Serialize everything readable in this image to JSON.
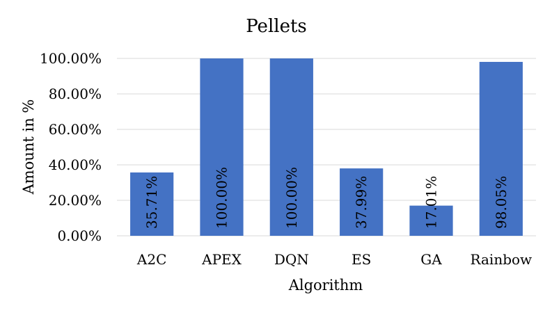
{
  "chart_data": {
    "type": "bar",
    "title": "Pellets",
    "xlabel": "Algorithm",
    "ylabel": "Amount in %",
    "categories": [
      "A2C",
      "APEX",
      "DQN",
      "ES",
      "GA",
      "Rainbow"
    ],
    "values": [
      35.71,
      100.0,
      100.0,
      37.99,
      17.01,
      98.05
    ],
    "data_labels": [
      "35.71%",
      "100.00%",
      "100.00%",
      "37.99%",
      "17.01%",
      "98.05%"
    ],
    "ylim": [
      0,
      100
    ],
    "yticks": [
      0,
      20,
      40,
      60,
      80,
      100
    ],
    "ytick_labels": [
      "0.00%",
      "20.00%",
      "40.00%",
      "60.00%",
      "80.00%",
      "100.00%"
    ],
    "grid": true,
    "legend": "none",
    "bar_color": "#4472c4"
  }
}
